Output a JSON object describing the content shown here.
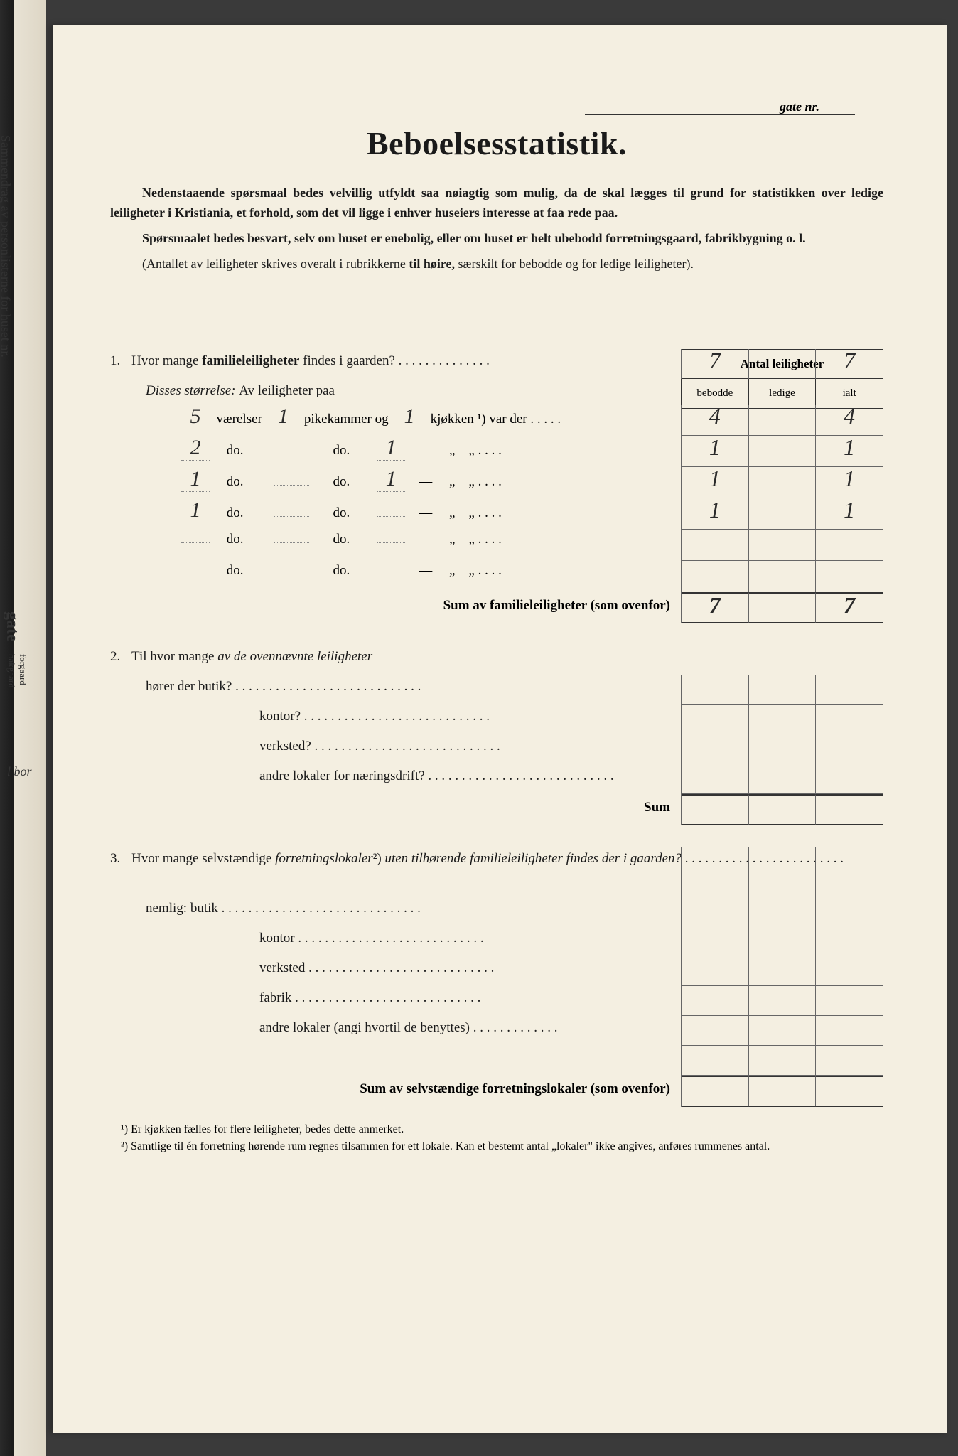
{
  "spine": {
    "text1": "Sammendrag av personlisterne for huset nr.",
    "text2": "gate",
    "text3a": "forgaard",
    "text3b": "bakgaard",
    "text4": "l bor"
  },
  "header": {
    "gate_label": "gate nr."
  },
  "title": "Beboelsesstatistik.",
  "intro": {
    "p1a": "Nedenstaaende spørsmaal bedes velvillig utfyldt saa nøiagtig som mulig, da de skal lægges til grund for statistikken over ledige leiligheter i Kristiania, et forhold, som det vil ligge i enhver huseiers interesse at faa rede paa.",
    "p2": "Spørsmaalet bedes besvart, selv om huset er enebolig, eller om huset er helt ubebodd forretningsgaard, fabrikbygning o. l.",
    "p3a": "(Antallet av leiligheter skrives overalt i rubrikkerne ",
    "p3b": "til høire,",
    "p3c": " særskilt for bebodde og for ledige leiligheter)."
  },
  "table_header": {
    "title": "Antal leiligheter",
    "col1": "bebodde",
    "col2": "ledige",
    "col3": "ialt"
  },
  "q1": {
    "num": "1.",
    "text_a": "Hvor mange ",
    "text_b": "familieleiligheter",
    "text_c": " findes i gaarden?",
    "bebodde": "7",
    "ialt": "7",
    "sub_label": "Disses størrelse:",
    "sub_text": " Av leiligheter paa",
    "rows": [
      {
        "vaer": "5",
        "pk": "1",
        "kj": "1",
        "lbl_v": "værelser",
        "lbl_p": "pikekammer og",
        "lbl_k": "kjøkken ¹) var der",
        "b": "4",
        "i": "4"
      },
      {
        "vaer": "2",
        "pk": "",
        "kj": "1",
        "lbl_v": "do.",
        "lbl_p": "do.",
        "lbl_k": "—",
        "b": "1",
        "i": "1"
      },
      {
        "vaer": "1",
        "pk": "",
        "kj": "1",
        "lbl_v": "do.",
        "lbl_p": "do.",
        "lbl_k": "—",
        "b": "1",
        "i": "1"
      },
      {
        "vaer": "1",
        "pk": "",
        "kj": "",
        "lbl_v": "do.",
        "lbl_p": "do.",
        "lbl_k": "—",
        "b": "1",
        "i": "1"
      },
      {
        "vaer": "",
        "pk": "",
        "kj": "",
        "lbl_v": "do.",
        "lbl_p": "do.",
        "lbl_k": "—",
        "b": "",
        "i": ""
      },
      {
        "vaer": "",
        "pk": "",
        "kj": "",
        "lbl_v": "do.",
        "lbl_p": "do.",
        "lbl_k": "—",
        "b": "",
        "i": ""
      }
    ],
    "sum_label_a": "Sum av familieleiligheter",
    "sum_label_b": " (som ovenfor)",
    "sum_b": "7",
    "sum_i": "7"
  },
  "q2": {
    "num": "2.",
    "text_a": "Til hvor mange ",
    "text_b": "av de ovennævnte leiligheter",
    "lines": [
      "hører der  butik?",
      "kontor?",
      "verksted?",
      "andre lokaler for næringsdrift?"
    ],
    "sum": "Sum"
  },
  "q3": {
    "num": "3.",
    "text_a": "Hvor mange selvstændige ",
    "text_b": "forretningslokaler",
    "text_c": "²) ",
    "text_d": "uten tilhørende familieleiligheter findes der i gaarden?",
    "nemlig": "nemlig:",
    "lines": [
      "butik",
      "kontor",
      "verksted",
      "fabrik",
      "andre lokaler (angi hvortil de benyttes)"
    ],
    "sum_a": "Sum av selvstændige forretningslokaler",
    "sum_b": " (som ovenfor)"
  },
  "footnotes": {
    "f1": "¹) Er kjøkken fælles for flere leiligheter, bedes dette anmerket.",
    "f2": "²) Samtlige til én forretning hørende rum regnes tilsammen for ett lokale.  Kan et bestemt antal „lokaler\" ikke angives, anføres rummenes antal."
  },
  "style": {
    "page_bg": "#f4efe1",
    "text_color": "#1a1a1a",
    "border_color": "#333333",
    "title_fontsize": 46,
    "body_fontsize": 19
  }
}
